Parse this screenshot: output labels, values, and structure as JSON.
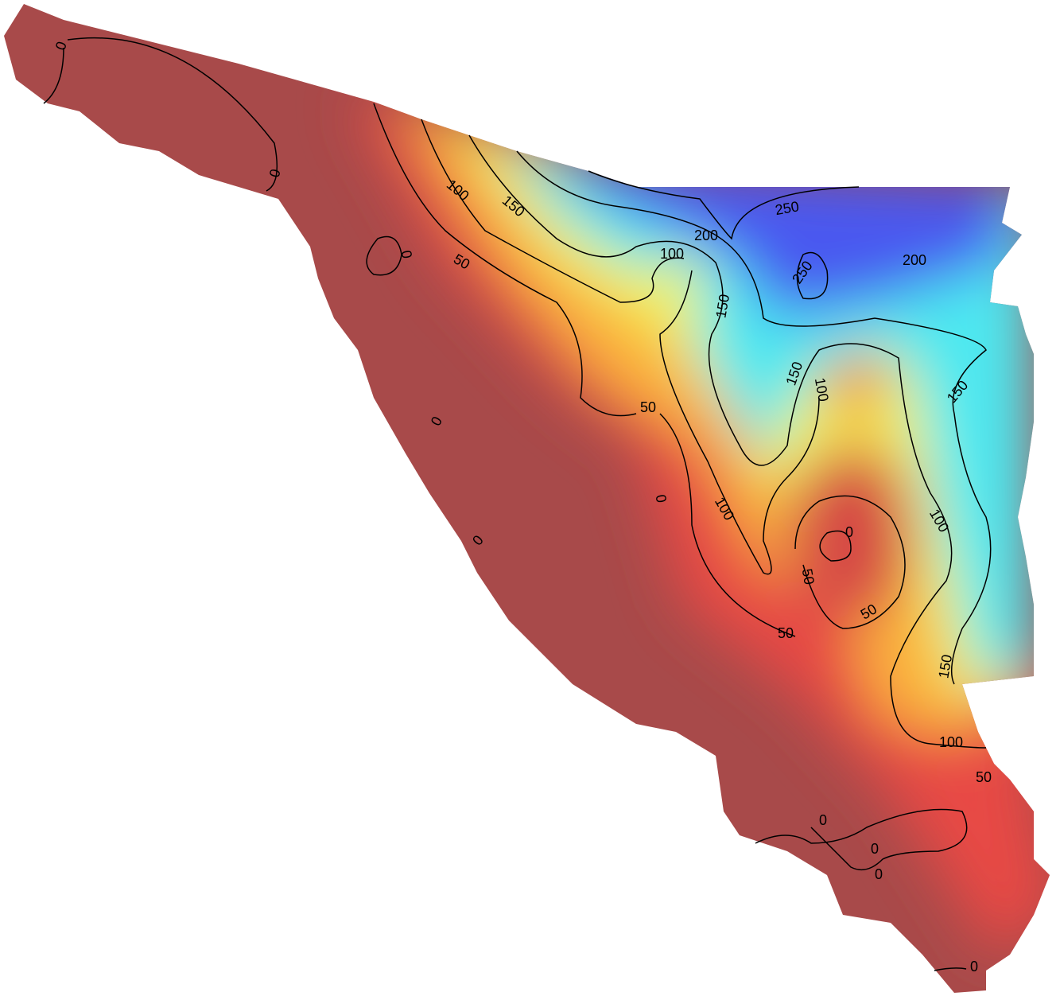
{
  "contour_levels": [
    "0",
    "50",
    "100",
    "150",
    "200",
    "250"
  ]
}
